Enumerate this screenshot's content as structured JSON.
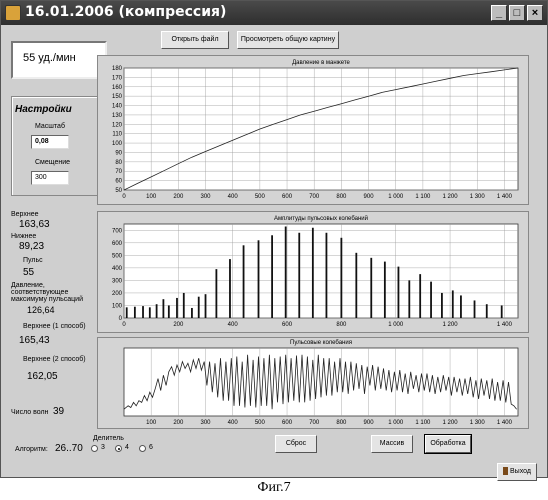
{
  "window": {
    "title": "16.01.2006 (компрессия)",
    "controls": {
      "minimize": "_",
      "maximize": "□",
      "close": "×"
    }
  },
  "toolbar": {
    "open_file": "Открыть файл",
    "view_overall": "Просмотреть общую картину"
  },
  "pulse_display": "55 уд./мин",
  "settings": {
    "title": "Настройки",
    "scale_label": "Масштаб",
    "scale_value": "0,08",
    "offset_label": "Смещение",
    "offset_value": "300"
  },
  "stats": {
    "upper_label": "Верхнее",
    "upper_value": "163,63",
    "lower_label": "Нижнее",
    "lower_value": "89,23",
    "pulse_label": "Пульс",
    "pulse_value": "55",
    "pressure_max_label_1": "Давление,",
    "pressure_max_label_2": "соответствующее",
    "pressure_max_label_3": "максимуму пульсаций",
    "pressure_max_value": "126,64",
    "upper1_label": "Верхнее (1 способ)",
    "upper1_value": "165,43",
    "upper2_label": "Верхнее (2 способ)",
    "upper2_value": "162,05",
    "waves_label": "Число волн",
    "waves_value": "39"
  },
  "bottom": {
    "algorithm_label": "Алгоритм:",
    "algorithm_value": "26..70",
    "divider_label": "Делитель",
    "divider_options": [
      "3",
      "4",
      "6"
    ],
    "divider_selected": "4",
    "reset": "Сброс",
    "array": "Массив",
    "process": "Обработка",
    "exit": "Выход"
  },
  "caption": "Фиг.7",
  "chart_data": [
    {
      "type": "line",
      "title": "Давление в манжете",
      "xlim": [
        0,
        1450
      ],
      "ylim": [
        50,
        180
      ],
      "xticks": [
        "0",
        "100",
        "200",
        "300",
        "400",
        "500",
        "600",
        "700",
        "800",
        "900",
        "1 000",
        "1 100",
        "1 200",
        "1 300",
        "1 400"
      ],
      "yticks": [
        "50",
        "60",
        "70",
        "80",
        "90",
        "100",
        "110",
        "120",
        "130",
        "140",
        "150",
        "160",
        "170",
        "180"
      ],
      "x": [
        0,
        50,
        100,
        150,
        200,
        250,
        300,
        350,
        400,
        450,
        500,
        550,
        600,
        650,
        700,
        750,
        800,
        850,
        900,
        950,
        1000,
        1050,
        1100,
        1150,
        1200,
        1250,
        1300,
        1350,
        1400,
        1450
      ],
      "y": [
        50,
        57,
        64,
        71,
        78,
        85,
        91,
        97,
        103,
        109,
        115,
        120,
        125,
        130,
        134,
        138,
        142,
        146,
        150,
        154,
        157,
        160,
        163,
        166,
        169,
        172,
        174,
        176,
        178,
        180
      ],
      "grid": true
    },
    {
      "type": "bar",
      "title": "Амплитуды пульсовых колебаний",
      "xlim": [
        0,
        1450
      ],
      "ylim": [
        0,
        750
      ],
      "xticks": [
        "0",
        "200",
        "400",
        "600",
        "800",
        "1 000",
        "1 200",
        "1 400"
      ],
      "yticks": [
        "0",
        "100",
        "200",
        "300",
        "400",
        "500",
        "600",
        "700"
      ],
      "x": [
        10,
        40,
        70,
        95,
        120,
        145,
        165,
        195,
        220,
        250,
        275,
        300,
        340,
        390,
        440,
        495,
        545,
        595,
        645,
        695,
        745,
        800,
        855,
        910,
        960,
        1010,
        1050,
        1090,
        1130,
        1170,
        1210,
        1240,
        1290,
        1335,
        1390
      ],
      "values": [
        85,
        90,
        95,
        85,
        110,
        150,
        100,
        160,
        200,
        80,
        170,
        190,
        390,
        470,
        580,
        620,
        660,
        730,
        680,
        720,
        680,
        640,
        520,
        480,
        450,
        410,
        300,
        350,
        290,
        200,
        220,
        180,
        140,
        110,
        100
      ],
      "grid": true
    },
    {
      "type": "line",
      "title": "Пульсовые колебания",
      "xlim": [
        0,
        1450
      ],
      "ylim": [
        -100,
        100
      ],
      "xticks": [
        "100",
        "200",
        "300",
        "400",
        "500",
        "600",
        "700",
        "800",
        "900",
        "1 000",
        "1 100",
        "1 200",
        "1 300",
        "1 400"
      ],
      "x": [
        0,
        15,
        25,
        35,
        45,
        55,
        65,
        75,
        85,
        95,
        105,
        115,
        125,
        135,
        145,
        155,
        165,
        175,
        185,
        195,
        205,
        215,
        225,
        235,
        245,
        255,
        265,
        275,
        285,
        295,
        305,
        315,
        325,
        335,
        345,
        355,
        365,
        375,
        385,
        395,
        405,
        415,
        425,
        435,
        445,
        455,
        465,
        475,
        485,
        495,
        505,
        515,
        525,
        535,
        545,
        555,
        565,
        575,
        585,
        595,
        605,
        615,
        625,
        635,
        645,
        655,
        665,
        675,
        685,
        695,
        705,
        715,
        725,
        735,
        745,
        755,
        765,
        775,
        785,
        795,
        805,
        815,
        825,
        835,
        845,
        855,
        865,
        875,
        885,
        895,
        905,
        915,
        925,
        935,
        945,
        955,
        965,
        975,
        985,
        995,
        1005,
        1015,
        1025,
        1035,
        1045,
        1055,
        1065,
        1075,
        1085,
        1095,
        1105,
        1115,
        1125,
        1135,
        1145,
        1155,
        1165,
        1175,
        1185,
        1195,
        1205,
        1215,
        1225,
        1235,
        1245,
        1255,
        1265,
        1275,
        1285,
        1295,
        1305,
        1315,
        1325,
        1335,
        1345,
        1355,
        1365,
        1375,
        1385,
        1395,
        1405,
        1415,
        1425,
        1435,
        1445
      ],
      "y": [
        -80,
        -70,
        -75,
        -60,
        -70,
        -55,
        -60,
        -40,
        -55,
        -30,
        -45,
        -20,
        10,
        -25,
        20,
        -10,
        30,
        45,
        20,
        50,
        30,
        60,
        40,
        55,
        30,
        65,
        40,
        70,
        35,
        60,
        -10,
        60,
        -30,
        55,
        -45,
        70,
        -55,
        60,
        -55,
        70,
        -70,
        75,
        -70,
        60,
        -75,
        80,
        -70,
        65,
        -75,
        75,
        -70,
        70,
        -70,
        80,
        -80,
        70,
        -60,
        75,
        -65,
        80,
        -60,
        70,
        -55,
        78,
        -60,
        80,
        -60,
        75,
        -55,
        65,
        -50,
        80,
        -45,
        70,
        -40,
        70,
        -40,
        60,
        -30,
        70,
        -30,
        60,
        -35,
        60,
        -25,
        55,
        -20,
        50,
        -35,
        45,
        -10,
        50,
        -25,
        45,
        -20,
        40,
        -25,
        35,
        -30,
        30,
        -25,
        35,
        -30,
        25,
        -35,
        30,
        -20,
        20,
        -30,
        25,
        -25,
        25,
        -30,
        20,
        -35,
        15,
        -30,
        20,
        -25,
        15,
        -40,
        15,
        -30,
        10,
        -40,
        10,
        -35,
        15,
        -45,
        5,
        -50,
        10,
        -40,
        5,
        -50,
        10,
        -55,
        0,
        -55,
        5,
        -60,
        0,
        -65,
        -70,
        -80
      ],
      "grid": true
    }
  ]
}
